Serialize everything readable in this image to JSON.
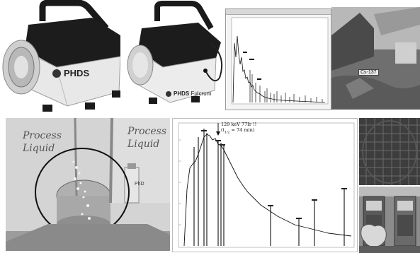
{
  "detector_large": {
    "brand": "PHDS"
  },
  "detector_small": {
    "brand": "PHDS",
    "model": "Fulcrum"
  },
  "spectrum_window": {
    "title_bar": ""
  },
  "site_photo": {
    "label": "Cs-137"
  },
  "process_board": {
    "text_left_1": "Process",
    "text_left_2": "Liquid",
    "text_right_1": "Process",
    "text_right_2": "Liquid",
    "bottle_label": "PhD"
  },
  "annotated_spectrum": {
    "annotation_line1": "129 keV 77Ir !!",
    "annotation_line2": "(t",
    "annotation_sub": "1/2",
    "annotation_line2_tail": " = 74 min)"
  }
}
